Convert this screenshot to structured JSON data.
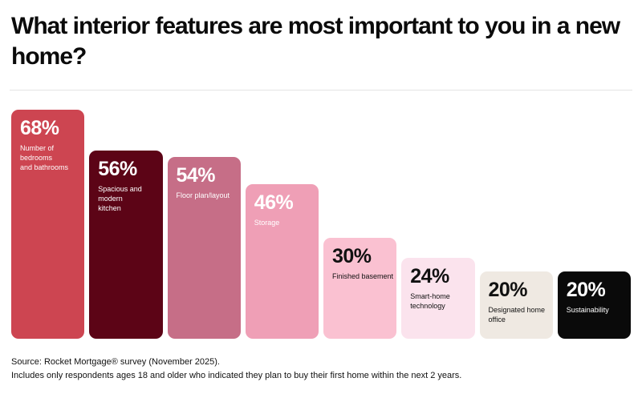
{
  "header": {
    "title": "What interior features are most important to you in a new home?"
  },
  "chart_data": {
    "type": "bar",
    "title": "What interior features are most important to you in a new home?",
    "unit": "%",
    "categories": [
      "Number of bedrooms and bathrooms",
      "Spacious and modern kitchen",
      "Floor plan/layout",
      "Storage",
      "Finished basement",
      "Smart-home technology",
      "Designated home office",
      "Sustainability"
    ],
    "display_labels": [
      "Number of bedrooms\nand bathrooms",
      "Spacious and modern\nkitchen",
      "Floor plan/layout",
      "Storage",
      "Finished basement",
      "Smart-home\ntechnology",
      "Designated home\noffice",
      "Sustainability"
    ],
    "values": [
      68,
      56,
      54,
      46,
      30,
      24,
      20,
      20
    ],
    "value_labels": [
      "68%",
      "56%",
      "54%",
      "46%",
      "30%",
      "24%",
      "20%",
      "20%"
    ],
    "bar_colors": [
      "#cd4551",
      "#5c0416",
      "#c66e87",
      "#ef9fb6",
      "#fac1d1",
      "#fbe3ed",
      "#efe9e2",
      "#0a0a0a"
    ],
    "label_text_colors": [
      "#ffffff",
      "#ffffff",
      "#ffffff",
      "#ffffff",
      "#111111",
      "#111111",
      "#111111",
      "#ffffff"
    ],
    "ylim": [
      0,
      70
    ],
    "grid": false,
    "legend": false,
    "axes_hidden": true
  },
  "footer": {
    "line1": "Source: Rocket Mortgage® survey (November 2025).",
    "line2": "Includes only respondents ages 18 and older who indicated they plan to buy their first home within the next 2 years."
  }
}
